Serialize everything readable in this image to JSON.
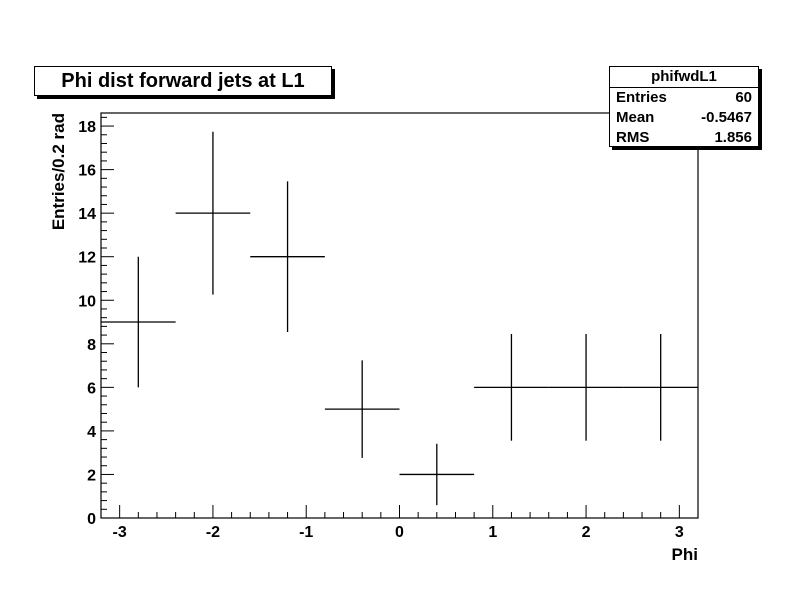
{
  "title": "Phi dist forward jets at L1",
  "stats": {
    "name": "phifwdL1",
    "rows": [
      {
        "label": "Entries",
        "value": "60"
      },
      {
        "label": "Mean",
        "value": "-0.5467"
      },
      {
        "label": "RMS",
        "value": "1.856"
      }
    ]
  },
  "chart_data": {
    "type": "scatter",
    "title": "Phi dist forward jets at L1",
    "xlabel": "Phi",
    "ylabel": "Entries/0.2 rad",
    "xlim": [
      -3.2,
      3.2
    ],
    "ylim": [
      0,
      18.6
    ],
    "xticks": [
      -3,
      -2,
      -1,
      0,
      1,
      2,
      3
    ],
    "yticks": [
      0,
      2,
      4,
      6,
      8,
      10,
      12,
      14,
      16,
      18
    ],
    "points": [
      {
        "x": -2.8,
        "y": 9,
        "xerr": 0.4,
        "yerr": 3
      },
      {
        "x": -2.0,
        "y": 14,
        "xerr": 0.4,
        "yerr": 3.74
      },
      {
        "x": -1.2,
        "y": 12,
        "xerr": 0.4,
        "yerr": 3.46
      },
      {
        "x": -0.4,
        "y": 5,
        "xerr": 0.4,
        "yerr": 2.24
      },
      {
        "x": 0.4,
        "y": 2,
        "xerr": 0.4,
        "yerr": 1.41
      },
      {
        "x": 1.2,
        "y": 6,
        "xerr": 0.4,
        "yerr": 2.45
      },
      {
        "x": 2.0,
        "y": 6,
        "xerr": 0.4,
        "yerr": 2.45
      },
      {
        "x": 2.8,
        "y": 6,
        "xerr": 0.4,
        "yerr": 2.45
      }
    ],
    "grid": false,
    "legend": "top-right"
  }
}
